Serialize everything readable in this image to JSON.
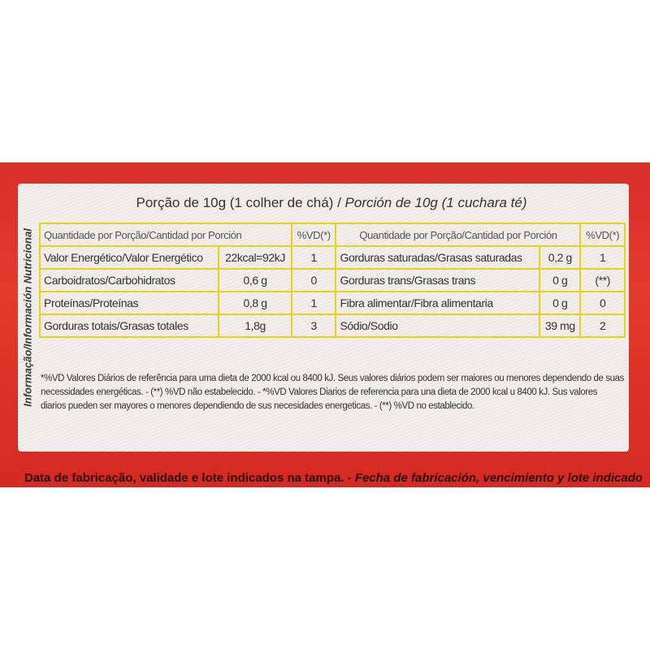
{
  "side_title": "Informação/Información Nutricional",
  "serving": {
    "pt": "Porção de 10g (1  colher de chá) / ",
    "es": "Porción de 10g (1 cuchara té)"
  },
  "header": {
    "quantity": "Quantidade por Porção/Cantidad por Porción",
    "vd": "%VD(*)"
  },
  "left_rows": [
    {
      "name": "Valor Energético/Valor Energético",
      "amount": "22kcal=92kJ",
      "vd": "1"
    },
    {
      "name": "Carboidratos/Carbohidratos",
      "amount": "0,6 g",
      "vd": "0"
    },
    {
      "name": "Proteínas/Proteínas",
      "amount": "0,8 g",
      "vd": "1"
    },
    {
      "name": "Gorduras totais/Grasas totales",
      "amount": "1,8g",
      "vd": "3"
    }
  ],
  "right_rows": [
    {
      "name": "Gorduras  saturadas/Grasas saturadas",
      "amount": "0,2 g",
      "vd": "1"
    },
    {
      "name": "Gorduras trans/Grasas trans",
      "amount": "0 g",
      "vd": "(**)"
    },
    {
      "name": "Fibra alimentar/Fibra alimentaria",
      "amount": "0 g",
      "vd": "0"
    },
    {
      "name": "Sódio/Sodio",
      "amount": "39 mg",
      "vd": "2"
    }
  ],
  "footnote": "*%VD Valores Diários de referência para uma dieta de 2000 kcal ou 8400 kJ. Seus valores diários podem ser maiores ou menores dependendo de suas necessidades energéticas. - (**) %VD não estabelecido. - *%VD Valores Diarios de referencia para una dieta de 2000 kcal u 8400 kJ. Sus valores diarios pueden ser mayores o menores dependiendo de sus necesidades energeticas. - (**) %VD no establecido.",
  "bottom": {
    "pt": "Data de fabricação, validade e lote indicados na tampa. - ",
    "es": "Fecha de fabricación, vencimiento y lote indicados en la tapa."
  },
  "colors": {
    "red": "#e23a2c",
    "grid_yellow": "#e8d21a",
    "label_bg": "#f1eeeb"
  }
}
